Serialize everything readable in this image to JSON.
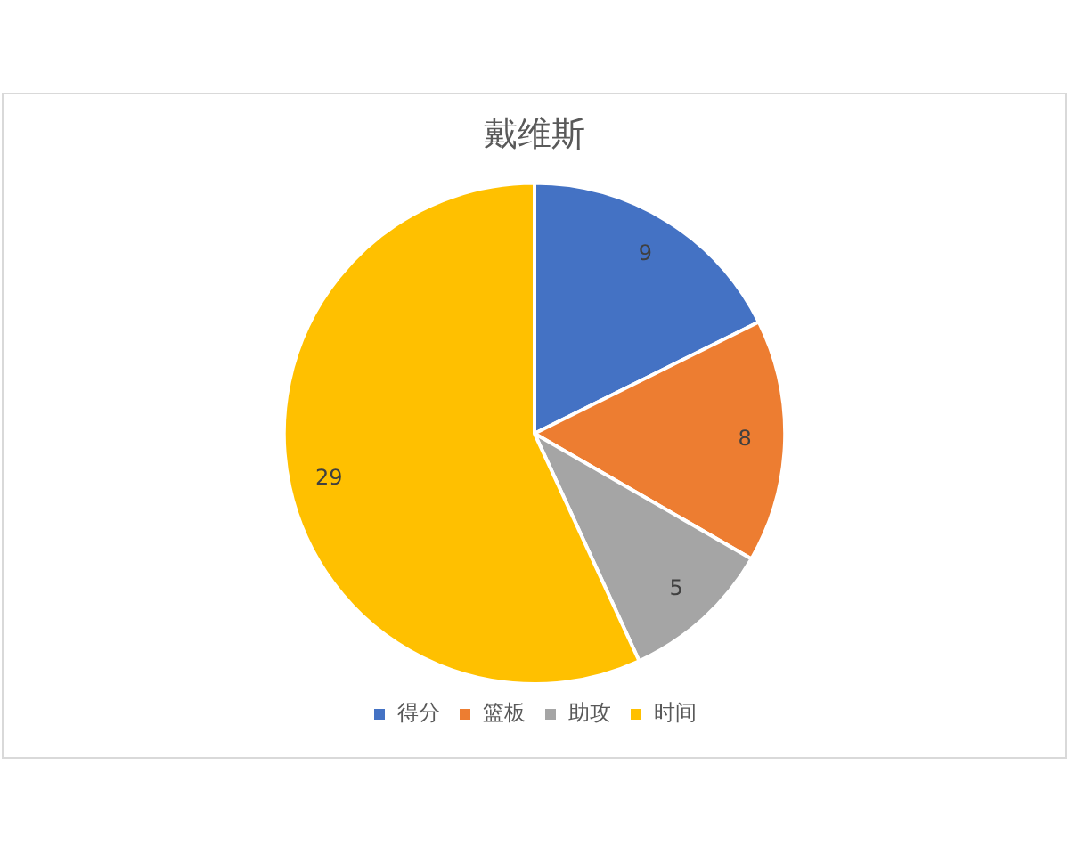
{
  "chart_data": {
    "type": "pie",
    "title": "戴维斯",
    "categories": [
      "得分",
      "篮板",
      "助攻",
      "时间"
    ],
    "values": [
      9,
      8,
      5,
      29
    ],
    "colors": [
      "#4472c4",
      "#ed7d31",
      "#a5a5a5",
      "#ffc000"
    ],
    "data_labels": true,
    "legend": "bottom"
  }
}
